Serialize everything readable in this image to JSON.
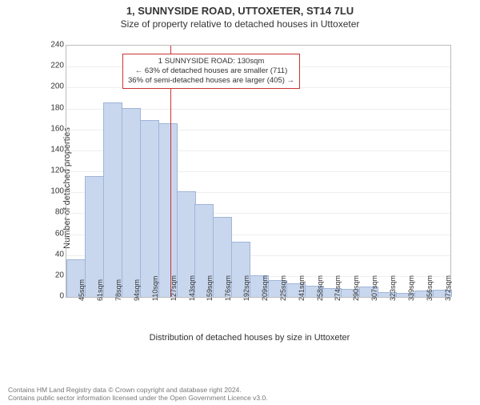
{
  "title_line1": "1, SUNNYSIDE ROAD, UTTOXETER, ST14 7LU",
  "title_line2": "Size of property relative to detached houses in Uttoxeter",
  "chart": {
    "type": "histogram",
    "x_label": "Distribution of detached houses by size in Uttoxeter",
    "y_label": "Number of detached properties",
    "ylim": [
      0,
      240
    ],
    "ytick_step": 20,
    "x_categories": [
      "45sqm",
      "61sqm",
      "78sqm",
      "94sqm",
      "110sqm",
      "127sqm",
      "143sqm",
      "159sqm",
      "176sqm",
      "192sqm",
      "209sqm",
      "225sqm",
      "241sqm",
      "258sqm",
      "274sqm",
      "290sqm",
      "307sqm",
      "323sqm",
      "339sqm",
      "356sqm",
      "372sqm"
    ],
    "bar_values": [
      35,
      115,
      185,
      180,
      168,
      165,
      100,
      88,
      76,
      52,
      20,
      15,
      12,
      10,
      8,
      7,
      9,
      4,
      3,
      5,
      6
    ],
    "bar_fill_color": "#c9d7ee",
    "bar_stroke_color": "#9fb5d8",
    "grid_color": "#eeeeee",
    "axis_color": "#bbbbbb",
    "background_color": "#ffffff",
    "reference_line": {
      "value_sqm": 130,
      "color": "#cc3333",
      "width": 1
    },
    "annotation": {
      "lines": [
        "1 SUNNYSIDE ROAD: 130sqm",
        "← 63% of detached houses are smaller (711)",
        "36% of semi-detached houses are larger (405) →"
      ],
      "border_color": "#cc3333",
      "background_color": "#ffffff",
      "fontsize": 9.5
    },
    "title_fontsize": 13,
    "subtitle_fontsize": 12,
    "label_fontsize": 11,
    "tick_fontsize": 10
  },
  "footer_line1": "Contains HM Land Registry data © Crown copyright and database right 2024.",
  "footer_line2": "Contains public sector information licensed under the Open Government Licence v3.0."
}
